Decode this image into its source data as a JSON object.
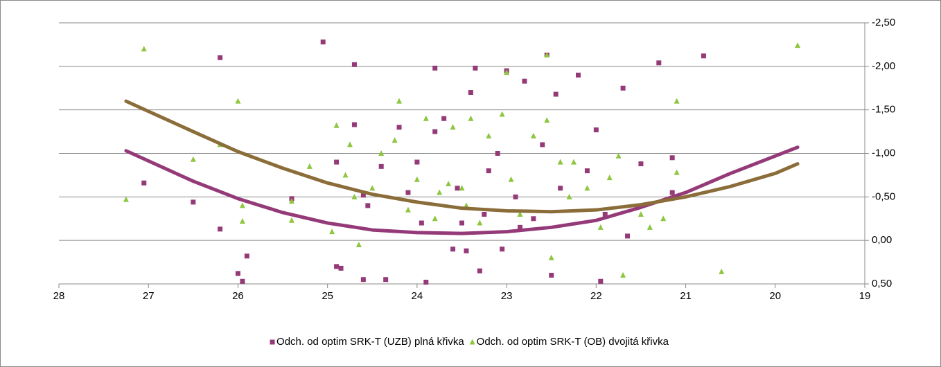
{
  "chart_data": {
    "type": "scatter",
    "xlim": [
      28,
      19
    ],
    "xticks": [
      28,
      27,
      26,
      25,
      24,
      23,
      22,
      21,
      20,
      19
    ],
    "ylim": [
      0.5,
      -2.5
    ],
    "yticks": [
      {
        "value": -2.5,
        "label": "-2,50"
      },
      {
        "value": -2,
        "label": "-2,00"
      },
      {
        "value": -1.5,
        "label": "-1,50"
      },
      {
        "value": -1,
        "label": "-1,00"
      },
      {
        "value": -0.5,
        "label": "-0,50"
      },
      {
        "value": 0,
        "label": "0,00"
      },
      {
        "value": 0.5,
        "label": "0,50"
      }
    ],
    "grid": true,
    "legend": "bottom",
    "series": [
      {
        "name": "Odch. od optim SRK-T (UZB) plná křivka",
        "color": "#953a78",
        "marker": "square",
        "x": [
          27.05,
          26.5,
          26.2,
          26.2,
          26,
          25.95,
          25.9,
          25.4,
          25.05,
          24.9,
          24.9,
          24.85,
          24.7,
          24.7,
          24.6,
          24.55,
          24.4,
          24.35,
          24.2,
          24.1,
          24.0,
          23.9,
          23.8,
          23.8,
          23.7,
          23.6,
          23.55,
          23.5,
          23.4,
          23.35,
          23.3,
          23.25,
          23.2,
          23.1,
          23.05,
          23.0,
          22.9,
          22.8,
          22.7,
          22.6,
          22.55,
          22.5,
          22.45,
          22.4,
          22.2,
          22.1,
          22.0,
          21.95,
          21.9,
          21.7,
          21.65,
          21.5,
          21.3,
          21.15,
          21.15,
          20.8,
          23.45,
          22.85,
          23.95,
          24.6
        ],
        "values": [
          -0.66,
          -0.44,
          -2.1,
          -0.13,
          0.38,
          0.47,
          0.18,
          -0.48,
          -2.28,
          -0.9,
          0.3,
          0.32,
          -2.02,
          -1.33,
          -0.52,
          -0.4,
          -0.85,
          0.45,
          -1.3,
          -0.55,
          -0.9,
          0.48,
          -1.98,
          -1.25,
          -1.4,
          0.1,
          -0.6,
          -0.2,
          -1.7,
          -1.98,
          0.35,
          -0.3,
          -0.8,
          -1.0,
          0.1,
          -1.95,
          -0.5,
          -1.83,
          -0.25,
          -1.1,
          -2.13,
          0.4,
          -1.68,
          -0.6,
          -1.9,
          -0.8,
          -1.27,
          0.47,
          -0.3,
          -1.75,
          -0.05,
          -0.88,
          -2.04,
          -0.95,
          -0.55,
          -2.12,
          0.12,
          -0.15,
          -0.2,
          0.45
        ],
        "trend": {
          "color": "#953a78",
          "x": [
            27.25,
            26.5,
            26,
            25.5,
            25,
            24.5,
            24,
            23.5,
            23,
            22.5,
            22,
            21.5,
            21,
            20.5,
            20,
            19.75
          ],
          "values": [
            -1.03,
            -0.68,
            -0.48,
            -0.32,
            -0.2,
            -0.12,
            -0.09,
            -0.08,
            -0.1,
            -0.15,
            -0.23,
            -0.38,
            -0.55,
            -0.77,
            -0.97,
            -1.07
          ]
        }
      },
      {
        "name": "Odch. od optim SRK-T (OB) dvojitá křivka",
        "color": "#8dc63f",
        "marker": "triangle",
        "x": [
          27.25,
          27.05,
          26.5,
          26.2,
          26.0,
          25.95,
          25.95,
          25.4,
          25.4,
          25.2,
          24.95,
          24.9,
          24.8,
          24.75,
          24.7,
          24.65,
          24.5,
          24.4,
          24.25,
          24.2,
          24.1,
          24.0,
          23.9,
          23.8,
          23.75,
          23.6,
          23.5,
          23.45,
          23.4,
          23.3,
          23.2,
          23.05,
          23.0,
          22.95,
          22.85,
          22.7,
          22.55,
          22.55,
          22.5,
          22.4,
          22.3,
          22.1,
          21.95,
          21.85,
          21.75,
          21.7,
          21.5,
          21.4,
          21.25,
          21.1,
          21.1,
          20.6,
          19.75,
          23.65,
          22.25
        ],
        "values": [
          -0.47,
          -2.2,
          -0.93,
          -1.1,
          -1.6,
          -0.4,
          -0.22,
          -0.23,
          -0.45,
          -0.85,
          -0.1,
          -1.32,
          -0.75,
          -1.1,
          -0.5,
          0.05,
          -0.6,
          -1.0,
          -1.15,
          -1.6,
          -0.35,
          -0.7,
          -1.4,
          -0.25,
          -0.55,
          -1.3,
          -0.6,
          -0.4,
          -1.4,
          -0.2,
          -1.2,
          -1.45,
          -1.93,
          -0.7,
          -0.3,
          -1.2,
          -2.13,
          -1.38,
          0.2,
          -0.9,
          -0.5,
          -0.6,
          -0.15,
          -0.72,
          -0.97,
          0.4,
          -0.3,
          -0.15,
          -0.25,
          -1.6,
          -0.78,
          0.36,
          -2.24,
          -0.65,
          -0.9
        ],
        "trend": {
          "color": "#8b6d3a",
          "x": [
            27.25,
            26.5,
            26,
            25.5,
            25,
            24.5,
            24,
            23.5,
            23,
            22.5,
            22,
            21.5,
            21,
            20.5,
            20,
            19.75
          ],
          "values": [
            -1.6,
            -1.25,
            -1.02,
            -0.83,
            -0.66,
            -0.53,
            -0.44,
            -0.37,
            -0.34,
            -0.33,
            -0.35,
            -0.41,
            -0.5,
            -0.62,
            -0.77,
            -0.88
          ]
        }
      }
    ]
  }
}
